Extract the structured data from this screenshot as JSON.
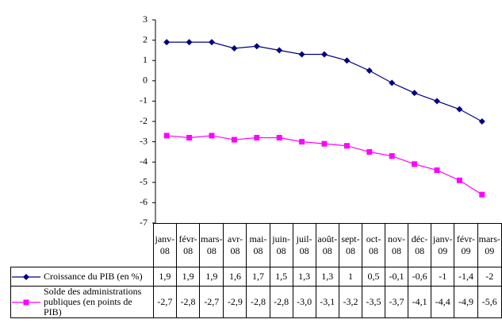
{
  "chart_data": {
    "type": "line",
    "categories": [
      "janv-08",
      "févr-08",
      "mars-08",
      "avr-08",
      "mai-08",
      "juin-08",
      "juil-08",
      "août-08",
      "sept-08",
      "oct-08",
      "nov-08",
      "déc-08",
      "janv-09",
      "févr-09",
      "mars-09"
    ],
    "series": [
      {
        "name": "Croissance du PIB (en %)",
        "color": "#000080",
        "marker": "diamond",
        "values": [
          1.9,
          1.9,
          1.9,
          1.6,
          1.7,
          1.5,
          1.3,
          1.3,
          1,
          0.5,
          -0.1,
          -0.6,
          -1,
          -1.4,
          -2
        ],
        "value_labels": [
          "1,9",
          "1,9",
          "1,9",
          "1,6",
          "1,7",
          "1,5",
          "1,3",
          "1,3",
          "1",
          "0,5",
          "-0,1",
          "-0,6",
          "-1",
          "-1,4",
          "-2"
        ]
      },
      {
        "name": "Solde des administrations publiques (en points de PIB)",
        "color": "#ff00ff",
        "marker": "square",
        "values": [
          -2.7,
          -2.8,
          -2.7,
          -2.9,
          -2.8,
          -2.8,
          -3.0,
          -3.1,
          -3.2,
          -3.5,
          -3.7,
          -4.1,
          -4.4,
          -4.9,
          -5.6
        ],
        "value_labels": [
          "-2,7",
          "-2,8",
          "-2,7",
          "-2,9",
          "-2,8",
          "-2,8",
          "-3,0",
          "-3,1",
          "-3,2",
          "-3,5",
          "-3,7",
          "-4,1",
          "-4,4",
          "-4,9",
          "-5,6"
        ]
      }
    ],
    "ylim": [
      -7,
      3
    ],
    "yticks": [
      -7,
      -6,
      -5,
      -4,
      -3,
      -2,
      -1,
      0,
      1,
      2,
      3
    ]
  }
}
